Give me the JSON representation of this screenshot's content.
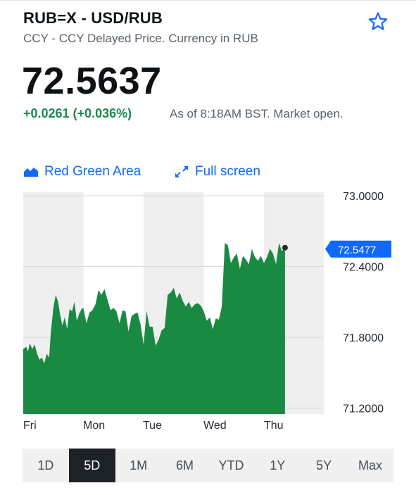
{
  "header": {
    "symbol_title": "RUB=X - USD/RUB",
    "subtitle": "CCY - CCY Delayed Price. Currency in RUB",
    "price": "72.5637",
    "change": "+0.0261 (+0.036%)",
    "as_of": "As of 8:18AM BST. Market open."
  },
  "toolbar": {
    "chart_type_label": "Red Green Area",
    "fullscreen_label": "Full screen",
    "accent_color": "#0f69ff"
  },
  "icons": {
    "favorite": "star-icon",
    "chart_type": "area-chart-icon",
    "fullscreen": "expand-arrows-icon"
  },
  "ranges": {
    "items": [
      "1D",
      "5D",
      "1M",
      "6M",
      "YTD",
      "1Y",
      "5Y",
      "Max"
    ],
    "selected": "5D"
  },
  "chart_data": {
    "type": "area",
    "title": "",
    "xlabel": "",
    "ylabel": "",
    "ylim": [
      71.15,
      73.03
    ],
    "y_ticks": [
      "73.0000",
      "72.4000",
      "71.8000",
      "71.2000"
    ],
    "x_tick_labels": [
      "Fri",
      "Mon",
      "Tue",
      "Wed",
      "Thu"
    ],
    "current_value_label": "72.5477",
    "fill_color": "#1a8a42",
    "label_color": "#0f69ff",
    "grid": true,
    "series": [
      {
        "day_boundaries": [
          0,
          1,
          2,
          3,
          4,
          4.35
        ],
        "x": [
          0.0,
          0.05,
          0.08,
          0.11,
          0.15,
          0.19,
          0.23,
          0.27,
          0.31,
          0.35,
          0.39,
          0.43,
          0.46,
          0.5,
          0.54,
          0.58,
          0.61,
          0.65,
          0.69,
          0.73,
          0.77,
          0.81,
          0.85,
          0.89,
          0.93,
          0.97,
          1.0,
          1.05,
          1.1,
          1.15,
          1.2,
          1.25,
          1.3,
          1.35,
          1.4,
          1.45,
          1.5,
          1.55,
          1.6,
          1.65,
          1.7,
          1.75,
          1.8,
          1.85,
          1.9,
          1.95,
          2.0,
          2.05,
          2.1,
          2.15,
          2.2,
          2.25,
          2.3,
          2.35,
          2.4,
          2.45,
          2.5,
          2.55,
          2.6,
          2.65,
          2.7,
          2.75,
          2.8,
          2.85,
          2.9,
          2.95,
          3.0,
          3.05,
          3.1,
          3.15,
          3.2,
          3.25,
          3.3,
          3.35,
          3.4,
          3.45,
          3.5,
          3.55,
          3.6,
          3.65,
          3.7,
          3.75,
          3.8,
          3.85,
          3.9,
          3.95,
          4.0,
          4.05,
          4.1,
          4.15,
          4.2,
          4.25,
          4.3,
          4.35
        ],
        "y": [
          71.7,
          71.72,
          71.68,
          71.75,
          71.7,
          71.74,
          71.66,
          71.61,
          71.63,
          71.58,
          71.66,
          71.63,
          71.85,
          72.05,
          72.16,
          72.1,
          72.0,
          71.9,
          71.97,
          71.87,
          72.04,
          72.02,
          72.1,
          71.94,
          72.0,
          72.04,
          72.05,
          71.92,
          72.01,
          72.03,
          72.08,
          72.2,
          72.16,
          72.21,
          72.12,
          72.03,
          72.05,
          72.02,
          71.92,
          72.03,
          72.02,
          71.85,
          71.98,
          72.0,
          72.01,
          71.91,
          71.74,
          72.02,
          71.89,
          71.89,
          71.73,
          71.78,
          71.86,
          71.88,
          72.16,
          72.18,
          72.22,
          72.13,
          72.18,
          72.11,
          72.06,
          72.1,
          72.05,
          72.08,
          72.09,
          72.07,
          72.02,
          71.94,
          71.97,
          71.87,
          71.96,
          71.95,
          72.06,
          72.6,
          72.58,
          72.43,
          72.48,
          72.51,
          72.38,
          72.49,
          72.46,
          72.42,
          72.55,
          72.48,
          72.45,
          72.49,
          72.43,
          72.48,
          72.55,
          72.51,
          72.42,
          72.6,
          72.53,
          72.56
        ]
      }
    ]
  }
}
